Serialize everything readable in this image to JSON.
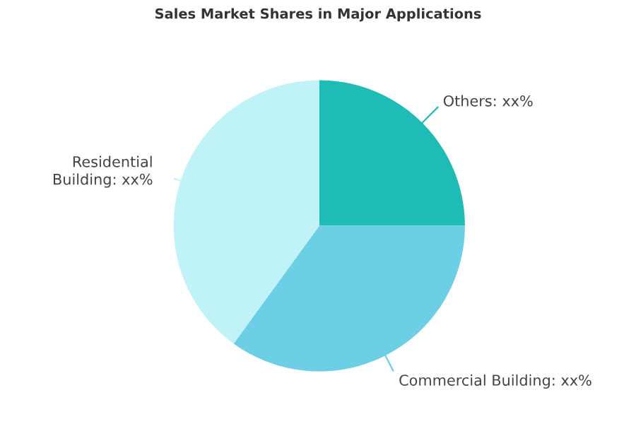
{
  "chart_data": {
    "type": "pie",
    "title": "Sales Market Shares in Major Applications",
    "categories": [
      "Others",
      "Commercial Building",
      "Residential Building"
    ],
    "values": [
      25,
      35,
      40
    ],
    "value_labels": [
      "xx%",
      "xx%",
      "xx%"
    ],
    "colors": [
      "#1fbcb6",
      "#6ccfe6",
      "#c0f3f8"
    ]
  }
}
